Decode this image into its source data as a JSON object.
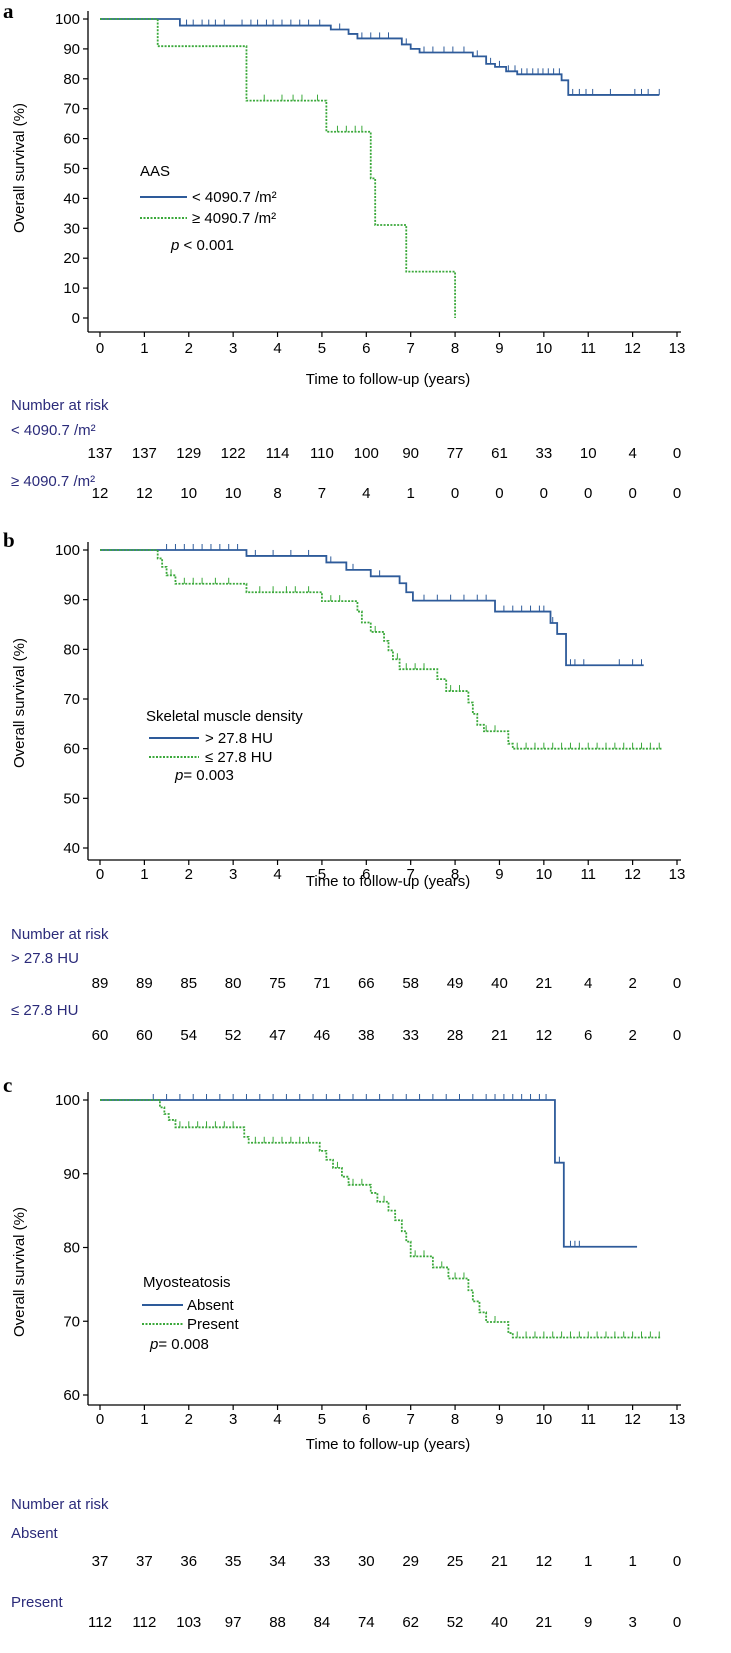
{
  "chart_data": [
    {
      "type": "line",
      "panel": "a",
      "xlabel": "Time to follow-up (years)",
      "ylabel": "Overall survival (%)",
      "xlim": [
        0,
        13
      ],
      "ylim": [
        0,
        100
      ],
      "xticks": [
        0,
        1,
        2,
        3,
        4,
        5,
        6,
        7,
        8,
        9,
        10,
        11,
        12,
        13
      ],
      "yticks": [
        0,
        10,
        20,
        30,
        40,
        50,
        60,
        70,
        80,
        90,
        100
      ],
      "grid": false,
      "legend": {
        "title": "AAS",
        "placement": "middle-left",
        "p_prefix": "p",
        "p_text": " < 0.001"
      },
      "series": [
        {
          "name": "< 4090.7 /m²",
          "color": "#2e5b9a",
          "style": "solid",
          "steps": [
            [
              0,
              100
            ],
            [
              1.5,
              100
            ],
            [
              1.8,
              97.8
            ],
            [
              5.2,
              96.5
            ],
            [
              5.6,
              95
            ],
            [
              5.8,
              93.5
            ],
            [
              6.8,
              91.5
            ],
            [
              7,
              90
            ],
            [
              7.2,
              88.8
            ],
            [
              8.4,
              87.5
            ],
            [
              8.7,
              85
            ],
            [
              8.9,
              84
            ],
            [
              9.15,
              82.5
            ],
            [
              9.4,
              81.5
            ],
            [
              10.4,
              79.5
            ],
            [
              10.55,
              74.6
            ],
            [
              12.6,
              74.6
            ]
          ],
          "censored": [
            1.8,
            1.95,
            2.1,
            2.3,
            2.45,
            2.6,
            2.8,
            3.2,
            3.4,
            3.55,
            3.75,
            3.9,
            4.1,
            4.3,
            4.5,
            4.7,
            4.95,
            5.4,
            5.9,
            6.1,
            6.3,
            6.5,
            6.9,
            7.3,
            7.5,
            7.75,
            7.95,
            8.2,
            8.5,
            8.8,
            9.0,
            9.2,
            9.35,
            9.5,
            9.62,
            9.75,
            9.87,
            9.98,
            10.1,
            10.22,
            10.35,
            10.65,
            10.8,
            10.95,
            11.1,
            11.5,
            12.05,
            12.2,
            12.35,
            12.6
          ]
        },
        {
          "name": "≥ 4090.7 /m²",
          "color": "#3aa83a",
          "style": "dotted",
          "steps": [
            [
              0,
              100
            ],
            [
              1.3,
              100
            ],
            [
              1.3,
              90.9
            ],
            [
              3.2,
              90.9
            ],
            [
              3.3,
              72.7
            ],
            [
              5.05,
              72.7
            ],
            [
              5.1,
              62.3
            ],
            [
              6.05,
              62.3
            ],
            [
              6.1,
              46.7
            ],
            [
              6.2,
              31.1
            ],
            [
              6.85,
              31.1
            ],
            [
              6.9,
              15.5
            ],
            [
              8,
              15.5
            ],
            [
              8,
              0
            ]
          ],
          "censored": [
            3.7,
            4.1,
            4.35,
            4.55,
            4.9,
            5.35,
            5.55,
            5.75,
            5.9
          ]
        }
      ],
      "risk_table": {
        "title": "Number at risk",
        "groups": [
          {
            "label": "< 4090.7 /m²",
            "values": [
              "137",
              "137",
              "129",
              "122",
              "114",
              "110",
              "100",
              "90",
              "77",
              "61",
              "33",
              "10",
              "4",
              "0"
            ]
          },
          {
            "label": "≥ 4090.7 /m²",
            "values": [
              "12",
              "12",
              "10",
              "10",
              "8",
              "7",
              "4",
              "1",
              "0",
              "0",
              "0",
              "0",
              "0",
              "0"
            ]
          }
        ]
      }
    },
    {
      "type": "line",
      "panel": "b",
      "xlabel": "Time to follow-up (years)",
      "ylabel": "Overall survival (%)",
      "xlim": [
        0,
        13
      ],
      "ylim": [
        40,
        100
      ],
      "xticks": [
        0,
        1,
        2,
        3,
        4,
        5,
        6,
        7,
        8,
        9,
        10,
        11,
        12,
        13
      ],
      "yticks": [
        40,
        50,
        60,
        70,
        80,
        90,
        100
      ],
      "grid": false,
      "legend": {
        "title": "Skeletal muscle density",
        "placement": "middle-left",
        "p_prefix": "p",
        "p_text": "= 0.003"
      },
      "series": [
        {
          "name": "> 27.8 HU",
          "color": "#2e5b9a",
          "style": "solid",
          "steps": [
            [
              0,
              100
            ],
            [
              3.25,
              100
            ],
            [
              3.3,
              98.8
            ],
            [
              5.05,
              98.8
            ],
            [
              5.1,
              97.5
            ],
            [
              5.5,
              97.5
            ],
            [
              5.55,
              96
            ],
            [
              6.05,
              96
            ],
            [
              6.1,
              94.7
            ],
            [
              6.7,
              94.7
            ],
            [
              6.75,
              93.3
            ],
            [
              6.85,
              93.3
            ],
            [
              6.9,
              91.5
            ],
            [
              7.0,
              91.5
            ],
            [
              7.05,
              89.8
            ],
            [
              8.85,
              89.8
            ],
            [
              8.9,
              87.6
            ],
            [
              10.05,
              87.6
            ],
            [
              10.15,
              85.3
            ],
            [
              10.3,
              83.1
            ],
            [
              10.45,
              83.1
            ],
            [
              10.5,
              76.8
            ],
            [
              12.25,
              76.8
            ]
          ],
          "censored": [
            1.5,
            1.7,
            1.9,
            2.1,
            2.3,
            2.5,
            2.7,
            2.9,
            3.1,
            3.5,
            3.9,
            4.3,
            4.7,
            5.2,
            5.7,
            6.3,
            6.9,
            7.3,
            7.6,
            7.9,
            8.2,
            8.5,
            8.7,
            9.1,
            9.3,
            9.5,
            9.7,
            9.9,
            10.0,
            10.2,
            10.6,
            10.7,
            10.9,
            11.7,
            12.0,
            12.2
          ]
        },
        {
          "name": "≤ 27.8 HU",
          "color": "#3aa83a",
          "style": "dotted",
          "steps": [
            [
              0,
              100
            ],
            [
              1.2,
              100
            ],
            [
              1.3,
              98.3
            ],
            [
              1.4,
              96.6
            ],
            [
              1.5,
              94.9
            ],
            [
              1.7,
              93.2
            ],
            [
              3.25,
              93.2
            ],
            [
              3.3,
              91.5
            ],
            [
              4.9,
              91.5
            ],
            [
              5.0,
              89.7
            ],
            [
              5.75,
              89.7
            ],
            [
              5.8,
              87.6
            ],
            [
              5.9,
              85.4
            ],
            [
              6.05,
              85.4
            ],
            [
              6.1,
              83.5
            ],
            [
              6.35,
              83.5
            ],
            [
              6.4,
              81.7
            ],
            [
              6.5,
              79.8
            ],
            [
              6.6,
              78
            ],
            [
              6.75,
              76
            ],
            [
              7.55,
              76
            ],
            [
              7.6,
              74
            ],
            [
              7.75,
              74
            ],
            [
              7.8,
              71.6
            ],
            [
              8.25,
              71.6
            ],
            [
              8.3,
              69.3
            ],
            [
              8.4,
              67
            ],
            [
              8.5,
              64.8
            ],
            [
              8.65,
              63.5
            ],
            [
              9.15,
              63.5
            ],
            [
              9.2,
              61
            ],
            [
              9.3,
              60
            ],
            [
              12.65,
              60
            ]
          ],
          "censored": [
            1.6,
            1.9,
            2.1,
            2.3,
            2.6,
            2.9,
            3.6,
            3.9,
            4.2,
            4.4,
            4.7,
            5.2,
            5.4,
            6.2,
            6.7,
            6.9,
            7.1,
            7.3,
            7.9,
            8.1,
            8.7,
            8.9,
            9.4,
            9.6,
            9.8,
            10.0,
            10.2,
            10.4,
            10.6,
            10.8,
            11.0,
            11.2,
            11.4,
            11.6,
            11.8,
            12.0,
            12.2,
            12.4,
            12.6
          ]
        }
      ],
      "risk_table": {
        "title": "Number at risk",
        "groups": [
          {
            "label": "> 27.8 HU",
            "values": [
              "89",
              "89",
              "85",
              "80",
              "75",
              "71",
              "66",
              "58",
              "49",
              "40",
              "21",
              "4",
              "2",
              "0"
            ]
          },
          {
            "label": "≤ 27.8 HU",
            "values": [
              "60",
              "60",
              "54",
              "52",
              "47",
              "46",
              "38",
              "33",
              "28",
              "21",
              "12",
              "6",
              "2",
              "0"
            ]
          }
        ]
      }
    },
    {
      "type": "line",
      "panel": "c",
      "xlabel": "Time to follow-up (years)",
      "ylabel": "Overall survival (%)",
      "xlim": [
        0,
        13
      ],
      "ylim": [
        60,
        100
      ],
      "xticks": [
        0,
        1,
        2,
        3,
        4,
        5,
        6,
        7,
        8,
        9,
        10,
        11,
        12,
        13
      ],
      "yticks": [
        60,
        70,
        80,
        90,
        100
      ],
      "grid": false,
      "legend": {
        "title": "Myosteatosis",
        "placement": "middle-left",
        "p_prefix": "p",
        "p_text": "= 0.008"
      },
      "series": [
        {
          "name": "Absent",
          "color": "#2e5b9a",
          "style": "solid",
          "steps": [
            [
              0,
              100
            ],
            [
              10.2,
              100
            ],
            [
              10.25,
              91.5
            ],
            [
              10.4,
              91.5
            ],
            [
              10.45,
              80.1
            ],
            [
              12.1,
              80.1
            ]
          ],
          "censored": [
            1.2,
            1.5,
            1.8,
            2.1,
            2.4,
            2.7,
            3.0,
            3.3,
            3.6,
            3.9,
            4.2,
            4.5,
            4.8,
            5.1,
            5.4,
            5.7,
            6.0,
            6.3,
            6.6,
            6.9,
            7.2,
            7.5,
            7.8,
            8.1,
            8.4,
            8.7,
            8.9,
            9.1,
            9.3,
            9.5,
            9.7,
            9.9,
            10.05,
            10.35,
            10.6,
            10.7,
            10.8
          ]
        },
        {
          "name": "Present",
          "color": "#3aa83a",
          "style": "dotted",
          "steps": [
            [
              0,
              100
            ],
            [
              1.25,
              100
            ],
            [
              1.35,
              99
            ],
            [
              1.45,
              98.1
            ],
            [
              1.55,
              97.3
            ],
            [
              1.7,
              96.3
            ],
            [
              3.15,
              96.3
            ],
            [
              3.25,
              95
            ],
            [
              3.35,
              94.2
            ],
            [
              4.85,
              94.2
            ],
            [
              4.95,
              93.1
            ],
            [
              5.1,
              91.9
            ],
            [
              5.25,
              90.8
            ],
            [
              5.45,
              89.6
            ],
            [
              5.6,
              88.5
            ],
            [
              6.1,
              87.4
            ],
            [
              6.25,
              86.2
            ],
            [
              6.5,
              85
            ],
            [
              6.65,
              83.7
            ],
            [
              6.8,
              82.2
            ],
            [
              6.9,
              80.8
            ],
            [
              7.0,
              78.8
            ],
            [
              7.5,
              77.3
            ],
            [
              7.85,
              75.8
            ],
            [
              8.3,
              74.2
            ],
            [
              8.4,
              72.7
            ],
            [
              8.55,
              71.2
            ],
            [
              8.7,
              69.9
            ],
            [
              9.1,
              69.9
            ],
            [
              9.2,
              68.4
            ],
            [
              9.3,
              67.8
            ],
            [
              12.65,
              67.8
            ]
          ],
          "censored": [
            1.8,
            2.0,
            2.2,
            2.4,
            2.6,
            2.8,
            3.0,
            3.5,
            3.7,
            3.9,
            4.1,
            4.3,
            4.5,
            4.7,
            5.35,
            5.7,
            5.9,
            6.4,
            7.1,
            7.3,
            7.7,
            8.0,
            8.2,
            8.9,
            9.4,
            9.6,
            9.8,
            10.0,
            10.2,
            10.4,
            10.6,
            10.8,
            11.0,
            11.2,
            11.4,
            11.6,
            11.8,
            12.0,
            12.2,
            12.4,
            12.6
          ]
        }
      ],
      "risk_table": {
        "title": "Number at risk",
        "groups": [
          {
            "label": "Absent",
            "values": [
              "37",
              "37",
              "36",
              "35",
              "34",
              "33",
              "30",
              "29",
              "25",
              "21",
              "12",
              "1",
              "1",
              "0"
            ]
          },
          {
            "label": "Present",
            "values": [
              "112",
              "112",
              "103",
              "97",
              "88",
              "84",
              "74",
              "62",
              "52",
              "40",
              "21",
              "9",
              "3",
              "0"
            ]
          }
        ]
      }
    }
  ],
  "colors": {
    "series_a": "#2e5b9a",
    "series_b": "#3aa83a",
    "risk_text": "#2b2b7a"
  }
}
